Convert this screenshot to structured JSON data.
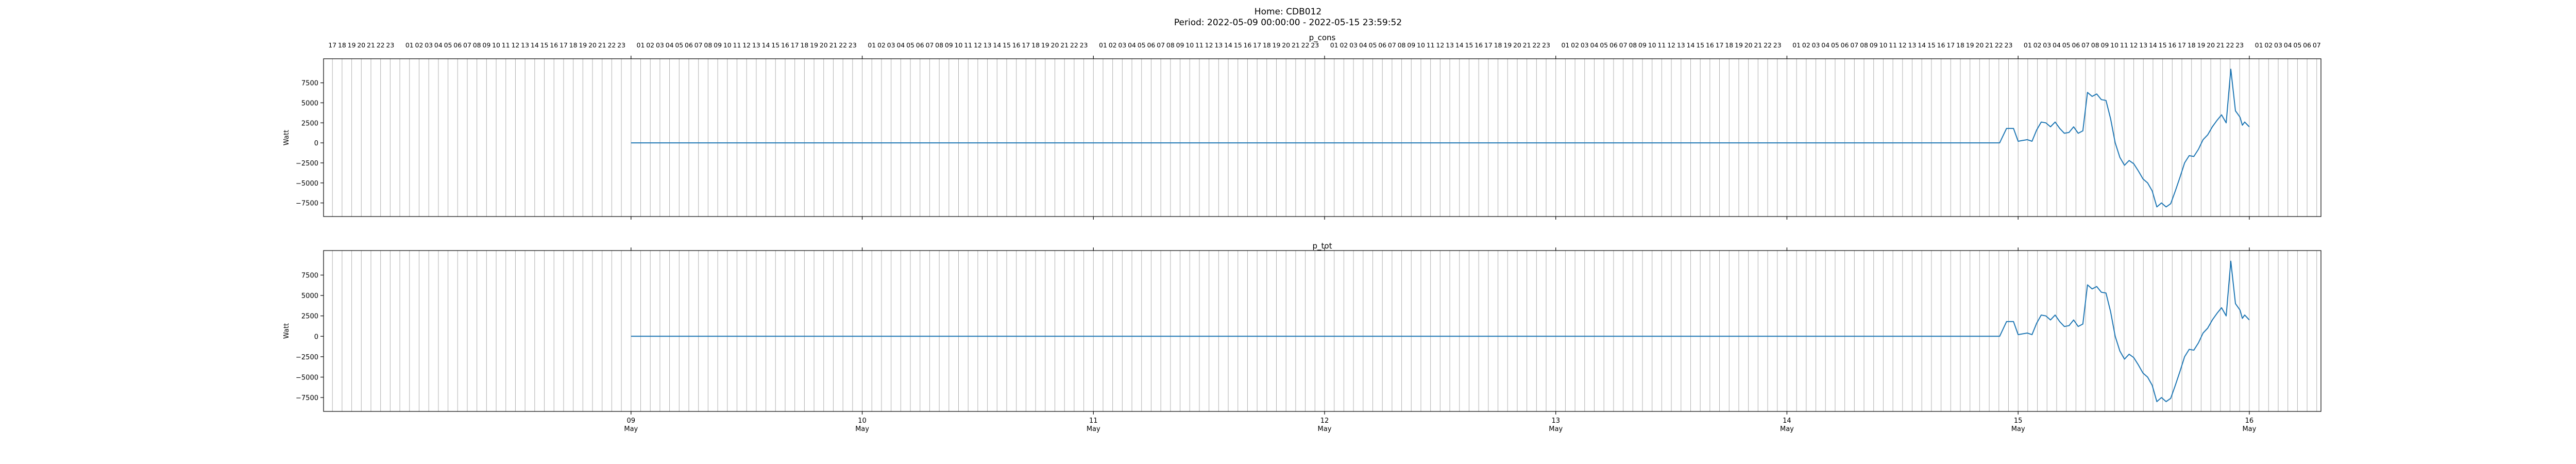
{
  "figure": {
    "title_line1": "Home: CDB012",
    "title_line2": "Period: 2022-05-09 00:00:00 - 2022-05-15 23:59:52"
  },
  "chart_data": [
    {
      "type": "line",
      "title": "p_cons",
      "ylabel": "Watt",
      "ylim": [
        -9200,
        10500
      ],
      "yticks": [
        -7500,
        -5000,
        -2500,
        0,
        2500,
        5000,
        7500
      ],
      "ytick_labels": [
        "−7500",
        "−5000",
        "−2500",
        "0",
        "2500",
        "5000",
        "7500"
      ],
      "xlim": [
        -1.33,
        7.31
      ],
      "grid": "vertical hourly lines",
      "hour_ticks_top": true,
      "series": [
        {
          "color": "#1f77b4",
          "x": [
            0,
            5.92,
            5.95,
            5.98,
            6.0,
            6.02,
            6.04,
            6.06,
            6.08,
            6.1,
            6.12,
            6.14,
            6.16,
            6.18,
            6.2,
            6.22,
            6.24,
            6.26,
            6.28,
            6.3,
            6.32,
            6.34,
            6.36,
            6.38,
            6.4,
            6.42,
            6.44,
            6.46,
            6.48,
            6.5,
            6.52,
            6.54,
            6.56,
            6.58,
            6.6,
            6.62,
            6.64,
            6.66,
            6.68,
            6.7,
            6.72,
            6.74,
            6.76,
            6.78,
            6.8,
            6.82,
            6.84,
            6.86,
            6.88,
            6.9,
            6.92,
            6.94,
            6.95,
            6.96,
            6.97,
            6.98,
            7.0
          ],
          "y": [
            0,
            0,
            1800,
            1800,
            200,
            300,
            400,
            200,
            1600,
            2600,
            2500,
            2000,
            2600,
            1800,
            1200,
            1300,
            2000,
            1200,
            1500,
            6300,
            5800,
            6100,
            5400,
            5300,
            3000,
            0,
            -1800,
            -2800,
            -2200,
            -2600,
            -3500,
            -4500,
            -5000,
            -6000,
            -8000,
            -7500,
            -8000,
            -7600,
            -6000,
            -4300,
            -2500,
            -1600,
            -1700,
            -800,
            400,
            1000,
            2000,
            2800,
            3500,
            2500,
            9200,
            4000,
            3600,
            3200,
            2200,
            2600,
            2000
          ]
        }
      ]
    },
    {
      "type": "line",
      "title": "p_tot",
      "ylabel": "Watt",
      "ylim": [
        -9200,
        10500
      ],
      "yticks": [
        -7500,
        -5000,
        -2500,
        0,
        2500,
        5000,
        7500
      ],
      "ytick_labels": [
        "−7500",
        "−5000",
        "−2500",
        "0",
        "2500",
        "5000",
        "7500"
      ],
      "xlim": [
        -1.33,
        7.31
      ],
      "grid": "vertical hourly lines",
      "xtick_labels": [
        "09\nMay",
        "10\nMay",
        "11\nMay",
        "12\nMay",
        "13\nMay",
        "14\nMay",
        "15\nMay",
        "16\nMay"
      ],
      "xtick_values": [
        0,
        1,
        2,
        3,
        4,
        5,
        6,
        7
      ],
      "series": [
        {
          "color": "#1f77b4",
          "x": [
            0,
            5.92,
            5.95,
            5.98,
            6.0,
            6.02,
            6.04,
            6.06,
            6.08,
            6.1,
            6.12,
            6.14,
            6.16,
            6.18,
            6.2,
            6.22,
            6.24,
            6.26,
            6.28,
            6.3,
            6.32,
            6.34,
            6.36,
            6.38,
            6.4,
            6.42,
            6.44,
            6.46,
            6.48,
            6.5,
            6.52,
            6.54,
            6.56,
            6.58,
            6.6,
            6.62,
            6.64,
            6.66,
            6.68,
            6.7,
            6.72,
            6.74,
            6.76,
            6.78,
            6.8,
            6.82,
            6.84,
            6.86,
            6.88,
            6.9,
            6.92,
            6.94,
            6.95,
            6.96,
            6.97,
            6.98,
            7.0
          ],
          "y": [
            0,
            0,
            1800,
            1800,
            200,
            300,
            400,
            200,
            1600,
            2600,
            2500,
            2000,
            2600,
            1800,
            1200,
            1300,
            2000,
            1200,
            1500,
            6300,
            5800,
            6100,
            5400,
            5300,
            3000,
            0,
            -1800,
            -2800,
            -2200,
            -2600,
            -3500,
            -4500,
            -5000,
            -6000,
            -8000,
            -7500,
            -8000,
            -7600,
            -6000,
            -4300,
            -2500,
            -1600,
            -1700,
            -800,
            400,
            1000,
            2000,
            2800,
            3500,
            2500,
            9200,
            4000,
            3600,
            3200,
            2200,
            2600,
            2000
          ]
        }
      ]
    }
  ]
}
